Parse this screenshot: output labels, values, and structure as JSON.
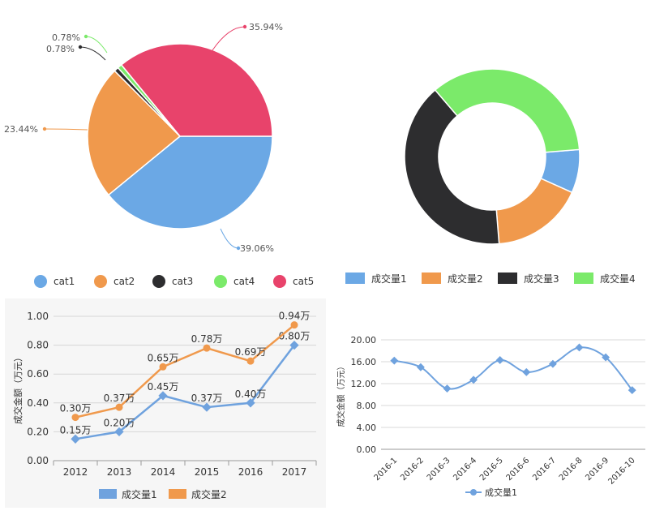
{
  "chart_data": [
    {
      "type": "pie",
      "categories": [
        "cat1",
        "cat2",
        "cat3",
        "cat4",
        "cat5"
      ],
      "values": [
        39.06,
        23.44,
        0.78,
        0.78,
        35.94
      ],
      "labels": [
        "39.06%",
        "23.44%",
        "0.78%",
        "0.78%",
        "35.94%"
      ],
      "colors": [
        "#6ba8e5",
        "#f0994c",
        "#2d2d2f",
        "#7bea6a",
        "#e8436b"
      ],
      "legend": "bottom"
    },
    {
      "type": "pie",
      "donut": true,
      "categories": [
        "成交量1",
        "成交量2",
        "成交量3",
        "成交量4"
      ],
      "values": [
        8,
        17,
        40,
        35
      ],
      "colors": [
        "#6ba8e5",
        "#f0994c",
        "#2d2d2f",
        "#7bea6a"
      ],
      "legend": "bottom"
    },
    {
      "type": "line",
      "categories": [
        "2012",
        "2013",
        "2014",
        "2015",
        "2016",
        "2017"
      ],
      "series": [
        {
          "name": "成交量1",
          "values": [
            0.15,
            0.2,
            0.45,
            0.37,
            0.4,
            0.8
          ],
          "labels": [
            "0.15万",
            "0.20万",
            "0.45万",
            "0.37万",
            "0.40万",
            "0.80万"
          ],
          "color": "#6fa2de"
        },
        {
          "name": "成交量2",
          "values": [
            0.3,
            0.37,
            0.65,
            0.78,
            0.69,
            0.94
          ],
          "labels": [
            "0.30万",
            "0.37万",
            "0.65万",
            "0.78万",
            "0.69万",
            "0.94万"
          ],
          "color": "#f0994c"
        }
      ],
      "ylabel": "成交金额（万元）",
      "ylim": [
        0,
        1
      ],
      "yticks": [
        "0.00",
        "0.20",
        "0.40",
        "0.60",
        "0.80",
        "1.00"
      ],
      "grid": true,
      "legend": "bottom"
    },
    {
      "type": "line",
      "smooth": true,
      "categories": [
        "2016-1",
        "2016-2",
        "2016-3",
        "2016-4",
        "2016-5",
        "2016-6",
        "2016-7",
        "2016-8",
        "2016-9",
        "2016-10"
      ],
      "series": [
        {
          "name": "成交量1",
          "values": [
            16.2,
            15.0,
            11.1,
            12.7,
            16.3,
            14.1,
            15.6,
            18.6,
            16.8,
            10.8
          ],
          "color": "#6fa2de"
        }
      ],
      "ylabel": "成交金额（万元）",
      "ylim": [
        0,
        20
      ],
      "yticks": [
        "0.00",
        "4.00",
        "8.00",
        "12.00",
        "16.00",
        "20.00"
      ],
      "grid": true,
      "legend": "bottom"
    }
  ]
}
